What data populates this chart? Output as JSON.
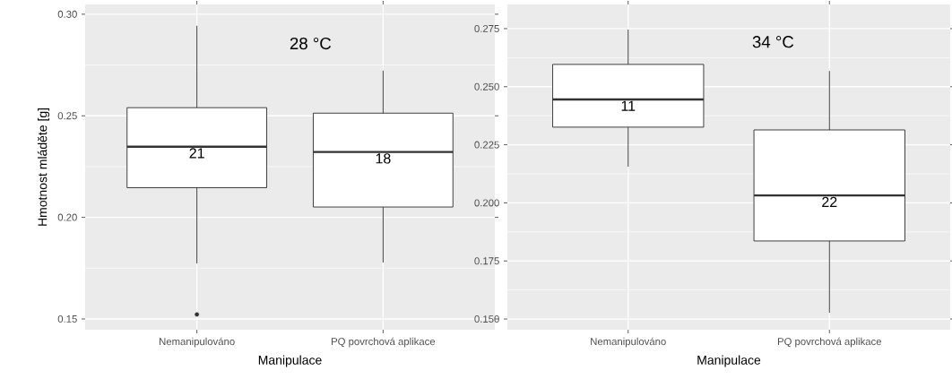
{
  "chart_data": [
    {
      "type": "box",
      "categories": [
        "Nemanipulováno",
        "PQ povrchová aplikace"
      ],
      "boxes": [
        {
          "low": 0.1773,
          "q1": 0.2146,
          "median": 0.2348,
          "q3": 0.254,
          "high": 0.2943,
          "outliers": [
            0.1522
          ]
        },
        {
          "low": 0.1778,
          "q1": 0.2051,
          "median": 0.2322,
          "q3": 0.2513,
          "high": 0.2722
        }
      ],
      "ylim": [
        0.1447,
        0.3048
      ],
      "yticks": [
        {
          "value": 0.15,
          "label": "0.15"
        },
        {
          "value": 0.2,
          "label": "0.20"
        },
        {
          "value": 0.25,
          "label": "0.25"
        },
        {
          "value": 0.3,
          "label": "0.30"
        }
      ],
      "xlabel": "Manipulace",
      "ylabel": "Hmotnost mláděte [g]",
      "grid": true,
      "annotations": [
        "28 °C",
        "21",
        "18"
      ]
    },
    {
      "type": "box",
      "categories": [
        "Nemanipulováno",
        "PQ povrchová aplikace"
      ],
      "boxes": [
        {
          "low": 0.2156,
          "q1": 0.2326,
          "median": 0.2445,
          "q3": 0.2596,
          "high": 0.2746
        },
        {
          "low": 0.1527,
          "q1": 0.1836,
          "median": 0.2032,
          "q3": 0.2314,
          "high": 0.2568
        }
      ],
      "ylim": [
        0.1454,
        0.2854
      ],
      "yticks": [
        {
          "value": 0.15,
          "label": "0.150"
        },
        {
          "value": 0.175,
          "label": "0.175"
        },
        {
          "value": 0.2,
          "label": "0.200"
        },
        {
          "value": 0.225,
          "label": "0.225"
        },
        {
          "value": 0.25,
          "label": "0.250"
        },
        {
          "value": 0.275,
          "label": "0.275"
        }
      ],
      "xlabel": "Manipulace",
      "grid": true,
      "annotations": [
        "34 °C",
        "11",
        "22"
      ]
    }
  ]
}
